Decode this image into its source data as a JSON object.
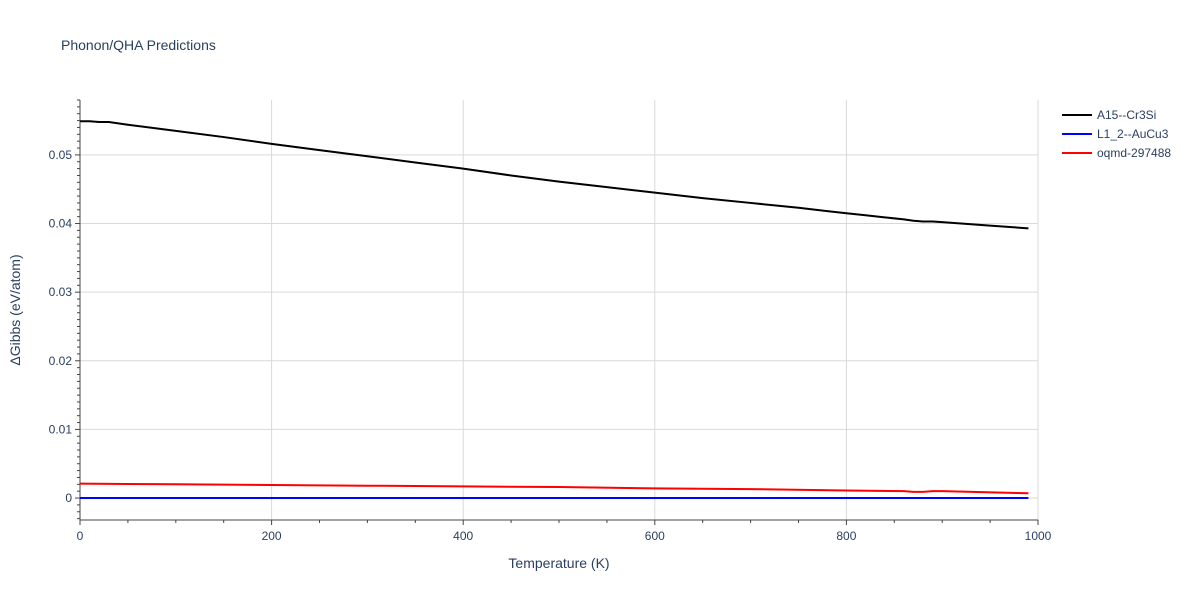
{
  "chart_data": {
    "type": "line",
    "title": "Phonon/QHA Predictions",
    "xlabel": "Temperature (K)",
    "ylabel": "ΔGibbs (eV/atom)",
    "xlim": [
      0,
      1000
    ],
    "ylim": [
      -0.0032,
      0.058
    ],
    "xticks": [
      0,
      200,
      400,
      600,
      800,
      1000
    ],
    "yticks": [
      0,
      0.01,
      0.02,
      0.03,
      0.04,
      0.05
    ],
    "xtick_labels": [
      "0",
      "200",
      "400",
      "600",
      "800",
      "1000"
    ],
    "ytick_labels": [
      "0",
      "0.01",
      "0.02",
      "0.03",
      "0.04",
      "0.05"
    ],
    "grid": true,
    "legend_position": "top-right",
    "series": [
      {
        "name": "A15--Cr3Si",
        "color": "#000000",
        "x": [
          0,
          10,
          20,
          30,
          50,
          100,
          150,
          200,
          250,
          300,
          350,
          400,
          450,
          500,
          550,
          600,
          650,
          700,
          750,
          780,
          800,
          820,
          840,
          860,
          870,
          880,
          890,
          900,
          950,
          990
        ],
        "y": [
          0.0549,
          0.0549,
          0.0548,
          0.0548,
          0.0544,
          0.0535,
          0.0526,
          0.0516,
          0.0507,
          0.0498,
          0.0489,
          0.048,
          0.047,
          0.0461,
          0.0453,
          0.0445,
          0.0437,
          0.043,
          0.0423,
          0.0418,
          0.0415,
          0.0412,
          0.0409,
          0.0406,
          0.0404,
          0.0403,
          0.0403,
          0.0402,
          0.0397,
          0.0393
        ]
      },
      {
        "name": "L1_2--AuCu3",
        "color": "#0000ff",
        "x": [
          0,
          990
        ],
        "y": [
          0,
          0
        ]
      },
      {
        "name": "oqmd-297488",
        "color": "#ff0000",
        "x": [
          0,
          100,
          200,
          300,
          400,
          500,
          600,
          700,
          800,
          860,
          870,
          880,
          890,
          900,
          990
        ],
        "y": [
          0.0021,
          0.002,
          0.0019,
          0.0018,
          0.0017,
          0.0016,
          0.0014,
          0.0013,
          0.0011,
          0.001,
          0.0009,
          0.0009,
          0.001,
          0.001,
          0.0007
        ]
      }
    ]
  }
}
